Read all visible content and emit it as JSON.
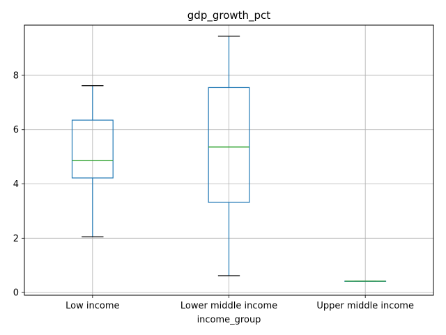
{
  "chart_data": {
    "type": "box",
    "title": "gdp_growth_pct",
    "xlabel": "income_group",
    "ylabel": "",
    "ylim": [
      -0.1,
      9.85
    ],
    "yticks": [
      0,
      2,
      4,
      6,
      8
    ],
    "grid": true,
    "categories": [
      "Low income",
      "Lower middle income",
      "Upper middle income"
    ],
    "boxes": [
      {
        "category": "Low income",
        "whisker_low": 2.05,
        "q1": 4.22,
        "median": 4.87,
        "q3": 6.35,
        "whisker_high": 7.62
      },
      {
        "category": "Lower middle income",
        "whisker_low": 0.62,
        "q1": 3.32,
        "median": 5.36,
        "q3": 7.55,
        "whisker_high": 9.44
      },
      {
        "category": "Upper middle income",
        "whisker_low": 0.42,
        "q1": 0.42,
        "median": 0.42,
        "q3": 0.42,
        "whisker_high": 0.42
      }
    ],
    "colors": {
      "box": "#1f77b4",
      "median": "#2ca02c",
      "whisker_cap": "#000000",
      "grid": "#b0b0b0",
      "axis": "#000000"
    }
  }
}
